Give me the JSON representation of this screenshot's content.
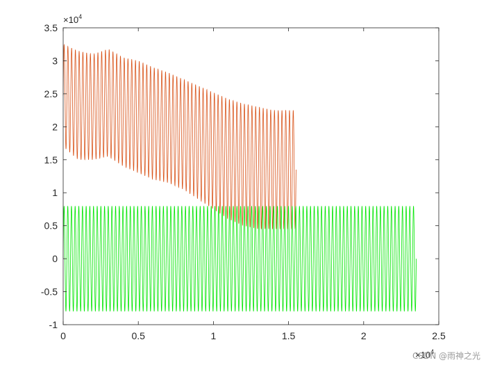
{
  "chart_data": {
    "type": "line",
    "title": "",
    "xlabel": "",
    "ylabel": "",
    "xlim": [
      0,
      25000
    ],
    "ylim": [
      -10000,
      35000
    ],
    "x_exponent_label": "×10",
    "x_exponent_power": "4",
    "y_exponent_label": "×10",
    "y_exponent_power": "4",
    "x_ticks": [
      {
        "value": 0,
        "label": "0"
      },
      {
        "value": 5000,
        "label": "0.5"
      },
      {
        "value": 10000,
        "label": "1"
      },
      {
        "value": 15000,
        "label": "1.5"
      },
      {
        "value": 20000,
        "label": "2"
      },
      {
        "value": 25000,
        "label": "2.5"
      }
    ],
    "y_ticks": [
      {
        "value": 35000,
        "label": "3.5"
      },
      {
        "value": 30000,
        "label": "3"
      },
      {
        "value": 25000,
        "label": "2.5"
      },
      {
        "value": 20000,
        "label": "2"
      },
      {
        "value": 15000,
        "label": "1.5"
      },
      {
        "value": 10000,
        "label": "1"
      },
      {
        "value": 5000,
        "label": "0.5"
      },
      {
        "value": 0,
        "label": "0"
      },
      {
        "value": -5000,
        "label": "-0.5"
      },
      {
        "value": -10000,
        "label": "-1"
      }
    ],
    "grid": false,
    "legend": "none",
    "series": [
      {
        "color": "#d95319",
        "style": "oscillating",
        "x_start": 0,
        "x_end": 15500,
        "cycles": 62,
        "upper_envelope": [
          [
            0,
            32500
          ],
          [
            1000,
            31500
          ],
          [
            2000,
            31000
          ],
          [
            3000,
            31800
          ],
          [
            4000,
            30500
          ],
          [
            5000,
            30000
          ],
          [
            6000,
            29000
          ],
          [
            7000,
            28200
          ],
          [
            8000,
            27200
          ],
          [
            9000,
            26200
          ],
          [
            10000,
            25200
          ],
          [
            11000,
            24200
          ],
          [
            12000,
            23500
          ],
          [
            13000,
            23000
          ],
          [
            14000,
            22500
          ],
          [
            15500,
            22500
          ]
        ],
        "lower_envelope": [
          [
            0,
            17000
          ],
          [
            1000,
            15000
          ],
          [
            2000,
            15000
          ],
          [
            3000,
            15500
          ],
          [
            4000,
            14000
          ],
          [
            5000,
            13000
          ],
          [
            6000,
            12000
          ],
          [
            7000,
            11500
          ],
          [
            8000,
            10500
          ],
          [
            9000,
            9000
          ],
          [
            10000,
            7500
          ],
          [
            11000,
            6000
          ],
          [
            12000,
            5000
          ],
          [
            13000,
            4500
          ],
          [
            14000,
            4500
          ],
          [
            15500,
            4500
          ]
        ]
      },
      {
        "color": "#00e600",
        "style": "oscillating",
        "x_start": 0,
        "x_end": 23500,
        "cycles": 96,
        "upper_envelope": [
          [
            0,
            8000
          ],
          [
            23500,
            8000
          ]
        ],
        "lower_envelope": [
          [
            0,
            -8000
          ],
          [
            23500,
            -8000
          ]
        ]
      }
    ]
  },
  "watermark": "CSDN @雨神之光"
}
